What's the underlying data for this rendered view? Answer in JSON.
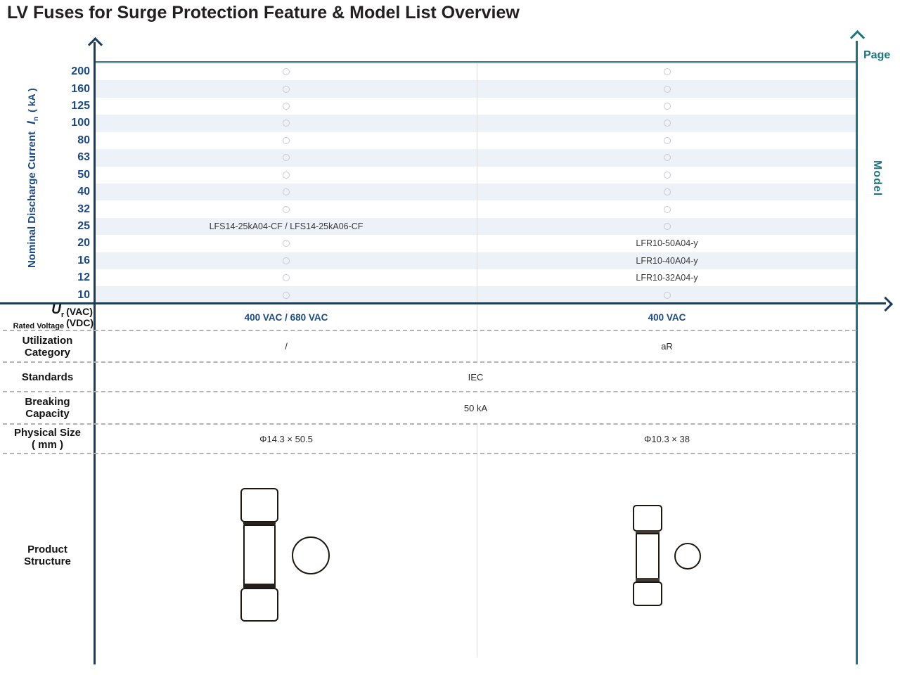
{
  "title": "LV Fuses for Surge Protection Feature & Model List Overview",
  "left_axis": {
    "label_prefix": "Nominal Discharge Current",
    "label_symbol": "I",
    "label_symbol_sub": "n",
    "label_unit": "( kA )"
  },
  "right_axis": {
    "page_label": "Page",
    "model_label": "Model"
  },
  "chart_data": {
    "type": "table",
    "title": "LV Fuses for Surge Protection Feature & Model List Overview",
    "y_axis_label": "Nominal Discharge Current In ( kA )",
    "right_axis_top_label": "Page",
    "right_axis_side_label": "Model",
    "y_ticks": [
      200,
      160,
      125,
      100,
      80,
      63,
      50,
      40,
      32,
      25,
      20,
      16,
      12,
      10
    ],
    "series": [
      {
        "column": "left",
        "models": [
          {
            "current": 25,
            "label": "LFS14-25kA04-CF / LFS14-25kA06-CF"
          }
        ]
      },
      {
        "column": "right",
        "models": [
          {
            "current": 20,
            "label": "LFR10-50A04-y"
          },
          {
            "current": 16,
            "label": "LFR10-40A04-y"
          },
          {
            "current": 12,
            "label": "LFR10-32A04-y"
          }
        ]
      }
    ],
    "empty_cell_marker": "circle",
    "grid": "striped-rows",
    "legend_position": "none"
  },
  "specs": {
    "voltage": {
      "symbol": "U",
      "symbol_sub": "r",
      "name": "Rated Voltage",
      "vac": "(VAC)",
      "vdc": "(VDC)",
      "left": "400 VAC / 680 VAC",
      "right": "400 VAC"
    },
    "utilization": {
      "name_line1": "Utilization",
      "name_line2": "Category",
      "left": "/",
      "right": "aR"
    },
    "standards": {
      "name": "Standards",
      "value": "IEC"
    },
    "breaking": {
      "name_line1": "Breaking",
      "name_line2": "Capacity",
      "value": "50 kA"
    },
    "size": {
      "name_line1": "Physical Size",
      "name_line2": "( mm )",
      "left": "Φ14.3 × 50.5",
      "right": "Φ10.3 × 38"
    },
    "structure": {
      "name_line1": "Product",
      "name_line2": "Structure"
    }
  },
  "colors": {
    "navy_axis": "#1d3c58",
    "tick_blue": "#1b4a86",
    "teal": "#1e747e",
    "stripe": "#edf1f8",
    "value_blue": "#1b4a86",
    "dash_gray": "#b3b3b3"
  }
}
